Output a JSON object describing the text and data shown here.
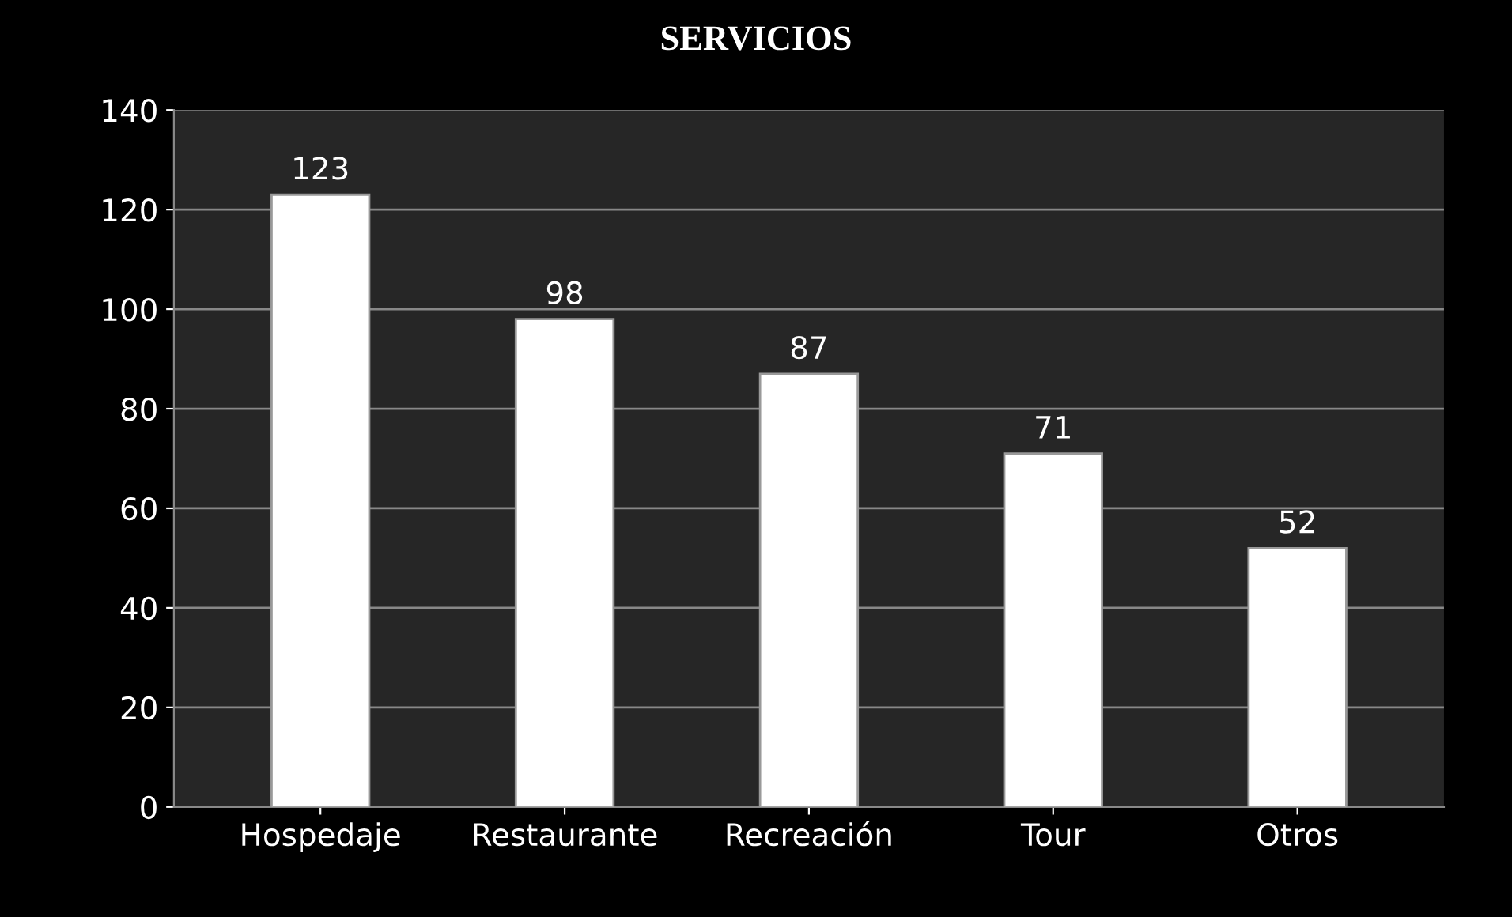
{
  "chart_data": {
    "type": "bar",
    "title": "SERVICIOS",
    "categories": [
      "Hospedaje",
      "Restaurante",
      "Recreación",
      "Tour",
      "Otros"
    ],
    "values": [
      123,
      98,
      87,
      71,
      52
    ],
    "color": "#ffffff",
    "ylim": [
      0,
      140
    ],
    "yticks": [
      0,
      20,
      40,
      60,
      80,
      100,
      120,
      140
    ],
    "grid": "y",
    "data_labels": true
  }
}
